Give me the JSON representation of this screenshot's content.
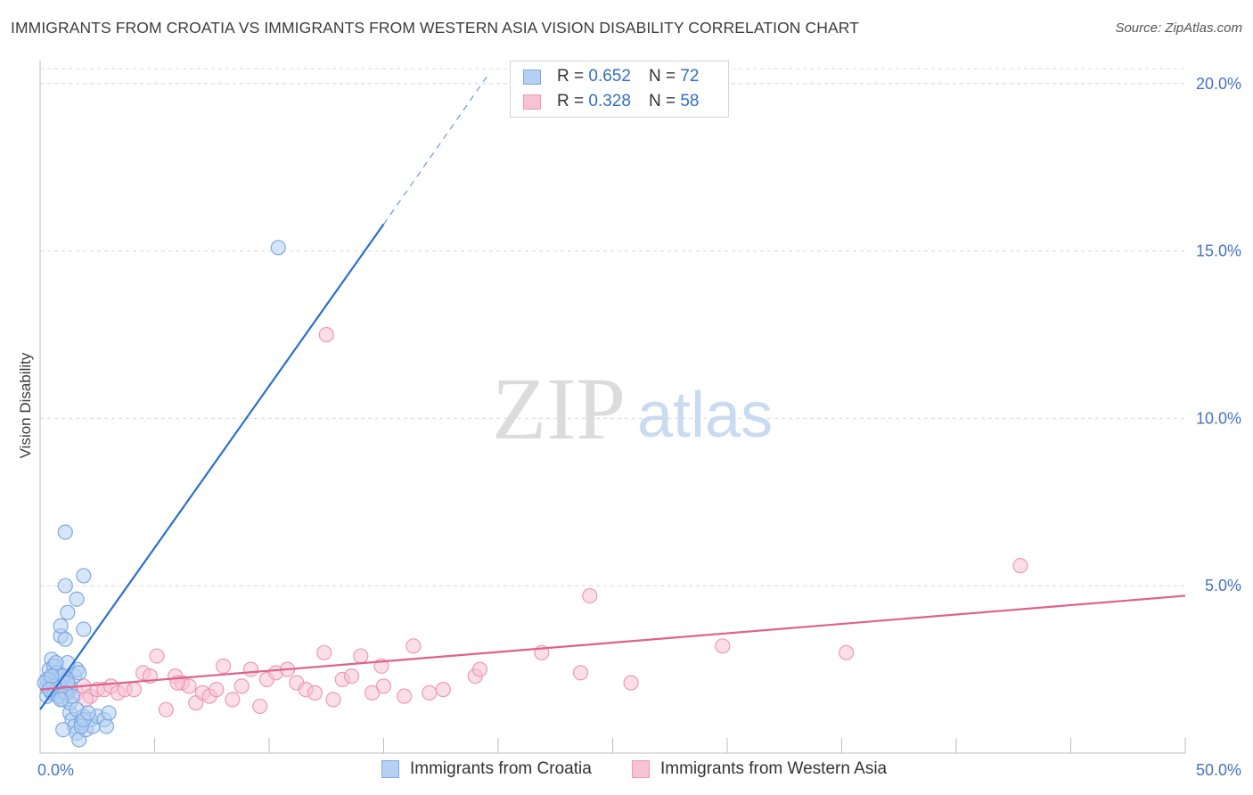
{
  "title": "IMMIGRANTS FROM CROATIA VS IMMIGRANTS FROM WESTERN ASIA VISION DISABILITY CORRELATION CHART",
  "source": "Source: ZipAtlas.com",
  "watermark": {
    "zip": "ZIP",
    "atlas": "atlas"
  },
  "colors": {
    "blue": "#2a6fcf",
    "blue_fill": "#b5d0f3",
    "blue_stroke": "#7fa9e0",
    "pink": "#e0608c",
    "pink_fill": "#f7c3d3",
    "pink_stroke": "#ee9ab5",
    "grid": "#d8d8d8",
    "axis": "#bdbdbd",
    "tick_text": "#4472c4"
  },
  "legend": {
    "series": [
      {
        "r_label": "R =",
        "r_value": "0.652",
        "n_label": "N =",
        "n_value": "72"
      },
      {
        "r_label": "R =",
        "r_value": "0.328",
        "n_label": "N =",
        "n_value": "58"
      }
    ]
  },
  "bottom_legend": {
    "croatia": "Immigrants from Croatia",
    "western_asia": "Immigrants from Western Asia"
  },
  "chart_data": {
    "type": "scatter",
    "ylabel": "Vision Disability",
    "xlabel": "",
    "xlim": [
      0,
      50
    ],
    "ylim": [
      0,
      20.5
    ],
    "x_tick_labels": {
      "min": "0.0%",
      "max": "50.0%"
    },
    "y_ticks": [
      {
        "value": 5,
        "label": "5.0%"
      },
      {
        "value": 10,
        "label": "10.0%"
      },
      {
        "value": 15,
        "label": "15.0%"
      },
      {
        "value": 20,
        "label": "20.0%"
      }
    ],
    "x_minor_ticks": [
      5,
      10,
      15,
      20,
      25,
      30,
      35,
      40,
      45,
      50
    ],
    "series": [
      {
        "name": "Immigrants from Croatia",
        "color_key": "blue",
        "trend": {
          "x0": 0,
          "y0": 1.3,
          "x1": 15,
          "y1": 15.8,
          "dash_to_x": 19.5,
          "dash_to_y": 20.2
        },
        "points": [
          [
            0.3,
            2.0
          ],
          [
            0.4,
            1.9
          ],
          [
            0.5,
            2.2
          ],
          [
            0.6,
            2.1
          ],
          [
            0.7,
            1.8
          ],
          [
            0.8,
            2.0
          ],
          [
            0.4,
            2.5
          ],
          [
            0.5,
            2.8
          ],
          [
            0.6,
            2.3
          ],
          [
            0.7,
            2.0
          ],
          [
            0.9,
            2.2
          ],
          [
            1.0,
            1.9
          ],
          [
            1.1,
            2.1
          ],
          [
            0.3,
            1.7
          ],
          [
            0.5,
            1.9
          ],
          [
            0.6,
            2.6
          ],
          [
            0.8,
            2.4
          ],
          [
            1.0,
            1.6
          ],
          [
            1.2,
            1.8
          ],
          [
            1.3,
            2.0
          ],
          [
            1.5,
            2.3
          ],
          [
            1.6,
            2.5
          ],
          [
            1.2,
            2.7
          ],
          [
            0.9,
            3.5
          ],
          [
            0.9,
            3.8
          ],
          [
            1.1,
            3.4
          ],
          [
            1.1,
            5.0
          ],
          [
            1.2,
            4.2
          ],
          [
            1.6,
            4.6
          ],
          [
            1.9,
            3.7
          ],
          [
            1.1,
            6.6
          ],
          [
            1.9,
            5.3
          ],
          [
            1.3,
            1.2
          ],
          [
            1.4,
            1.0
          ],
          [
            1.5,
            0.8
          ],
          [
            1.6,
            0.6
          ],
          [
            1.7,
            0.4
          ],
          [
            1.8,
            0.9
          ],
          [
            1.9,
            1.1
          ],
          [
            2.0,
            0.7
          ],
          [
            2.2,
            1.0
          ],
          [
            2.3,
            0.8
          ],
          [
            2.5,
            1.1
          ],
          [
            2.8,
            1.0
          ],
          [
            2.9,
            0.8
          ],
          [
            3.0,
            1.2
          ],
          [
            1.0,
            0.7
          ],
          [
            1.8,
            0.8
          ],
          [
            0.8,
            2.1
          ],
          [
            0.7,
            2.4
          ],
          [
            0.5,
            1.8
          ],
          [
            0.4,
            2.2
          ],
          [
            0.6,
            1.9
          ],
          [
            0.9,
            2.0
          ],
          [
            1.0,
            2.3
          ],
          [
            1.2,
            2.1
          ],
          [
            0.7,
            2.7
          ],
          [
            0.3,
            2.2
          ],
          [
            0.6,
            2.0
          ],
          [
            0.8,
            1.7
          ],
          [
            1.3,
            1.5
          ],
          [
            1.7,
            2.4
          ],
          [
            0.2,
            2.1
          ],
          [
            0.5,
            2.3
          ],
          [
            1.1,
            1.8
          ],
          [
            1.4,
            1.7
          ],
          [
            0.9,
            1.6
          ],
          [
            1.6,
            1.3
          ],
          [
            1.9,
            1.0
          ],
          [
            2.1,
            1.2
          ],
          [
            0.4,
            1.9
          ],
          [
            10.4,
            15.1
          ]
        ]
      },
      {
        "name": "Immigrants from Western Asia",
        "color_key": "pink",
        "trend": {
          "x0": 0,
          "y0": 1.9,
          "x1": 50,
          "y1": 4.7
        },
        "points": [
          [
            0.8,
            2.1
          ],
          [
            1.0,
            2.2
          ],
          [
            1.3,
            1.9
          ],
          [
            1.6,
            1.8
          ],
          [
            1.9,
            2.0
          ],
          [
            2.2,
            1.7
          ],
          [
            2.5,
            1.9
          ],
          [
            2.8,
            1.9
          ],
          [
            3.1,
            2.0
          ],
          [
            3.4,
            1.8
          ],
          [
            3.7,
            1.9
          ],
          [
            4.1,
            1.9
          ],
          [
            4.5,
            2.4
          ],
          [
            4.8,
            2.3
          ],
          [
            5.1,
            2.9
          ],
          [
            5.5,
            1.3
          ],
          [
            5.9,
            2.3
          ],
          [
            6.2,
            2.1
          ],
          [
            6.5,
            2.0
          ],
          [
            6.8,
            1.5
          ],
          [
            7.1,
            1.8
          ],
          [
            7.4,
            1.7
          ],
          [
            7.7,
            1.9
          ],
          [
            8.0,
            2.6
          ],
          [
            8.4,
            1.6
          ],
          [
            8.8,
            2.0
          ],
          [
            9.2,
            2.5
          ],
          [
            9.6,
            1.4
          ],
          [
            9.9,
            2.2
          ],
          [
            10.3,
            2.4
          ],
          [
            10.8,
            2.5
          ],
          [
            11.2,
            2.1
          ],
          [
            11.6,
            1.9
          ],
          [
            12.0,
            1.8
          ],
          [
            12.4,
            3.0
          ],
          [
            12.8,
            1.6
          ],
          [
            13.2,
            2.2
          ],
          [
            13.6,
            2.3
          ],
          [
            14.0,
            2.9
          ],
          [
            14.5,
            1.8
          ],
          [
            15.0,
            2.0
          ],
          [
            15.9,
            1.7
          ],
          [
            16.3,
            3.2
          ],
          [
            17.0,
            1.8
          ],
          [
            17.6,
            1.9
          ],
          [
            19.0,
            2.3
          ],
          [
            19.2,
            2.5
          ],
          [
            21.9,
            3.0
          ],
          [
            23.6,
            2.4
          ],
          [
            24.0,
            4.7
          ],
          [
            25.8,
            2.1
          ],
          [
            29.8,
            3.2
          ],
          [
            35.2,
            3.0
          ],
          [
            42.8,
            5.6
          ],
          [
            2.0,
            1.6
          ],
          [
            6.0,
            2.1
          ],
          [
            12.5,
            12.5
          ],
          [
            14.9,
            2.6
          ]
        ]
      }
    ]
  }
}
